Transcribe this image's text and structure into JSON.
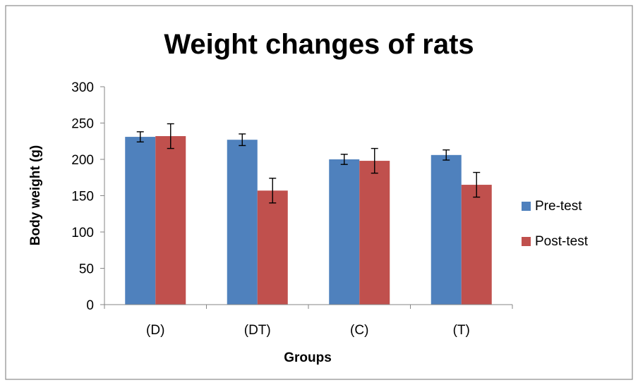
{
  "chart_data": {
    "type": "bar",
    "title": "Weight changes of rats",
    "xlabel": "Groups",
    "ylabel": "Body weight (g)",
    "categories": [
      "(D)",
      "(DT)",
      "(C)",
      "(T)"
    ],
    "series": [
      {
        "name": "Pre-test",
        "values": [
          231,
          227,
          200,
          206
        ],
        "errors": [
          7,
          8,
          7,
          7
        ],
        "color": "#4F81BD"
      },
      {
        "name": "Post-test",
        "values": [
          232,
          157,
          198,
          165
        ],
        "errors": [
          17,
          17,
          17,
          17
        ],
        "color": "#C0504D"
      }
    ],
    "ylim": [
      0,
      300
    ],
    "yticks": [
      0,
      50,
      100,
      150,
      200,
      250,
      300
    ],
    "grid": false,
    "legend": "right"
  }
}
